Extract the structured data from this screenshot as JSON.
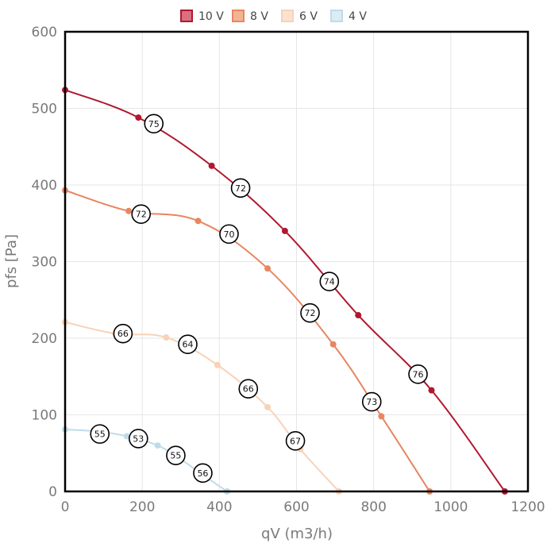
{
  "chart_data": {
    "type": "line",
    "xlabel": "qV (m3/h)",
    "ylabel": "pfs [Pa]",
    "xlim": [
      0,
      1200
    ],
    "ylim": [
      0,
      600
    ],
    "x_ticks": [
      0,
      200,
      400,
      600,
      800,
      1000,
      1200
    ],
    "y_ticks": [
      0,
      100,
      200,
      300,
      400,
      500,
      600
    ],
    "grid": true,
    "legend_position": "top",
    "series": [
      {
        "name": "10 V",
        "color": "#b0182f",
        "fill": "#d97080",
        "points": [
          [
            0,
            524
          ],
          [
            190,
            488
          ],
          [
            380,
            425
          ],
          [
            570,
            340
          ],
          [
            760,
            230
          ],
          [
            950,
            132
          ],
          [
            1140,
            0
          ]
        ],
        "annotations": [
          {
            "x": 230,
            "y": 480,
            "label": "75"
          },
          {
            "x": 455,
            "y": 396,
            "label": "72"
          },
          {
            "x": 685,
            "y": 274,
            "label": "74"
          },
          {
            "x": 915,
            "y": 153,
            "label": "76"
          }
        ]
      },
      {
        "name": "8 V",
        "color": "#e88660",
        "fill": "#f3b494",
        "points": [
          [
            0,
            393
          ],
          [
            165,
            366
          ],
          [
            345,
            353
          ],
          [
            525,
            291
          ],
          [
            695,
            192
          ],
          [
            820,
            98
          ],
          [
            945,
            0
          ]
        ],
        "annotations": [
          {
            "x": 197,
            "y": 362,
            "label": "72"
          },
          {
            "x": 425,
            "y": 336,
            "label": "70"
          },
          {
            "x": 635,
            "y": 233,
            "label": "72"
          },
          {
            "x": 795,
            "y": 117,
            "label": "73"
          }
        ]
      },
      {
        "name": "6 V",
        "color": "#f8d2b8",
        "fill": "#fbe2d2",
        "points": [
          [
            0,
            221
          ],
          [
            130,
            206
          ],
          [
            262,
            201
          ],
          [
            395,
            165
          ],
          [
            525,
            110
          ],
          [
            610,
            55
          ],
          [
            710,
            0
          ]
        ],
        "annotations": [
          {
            "x": 150,
            "y": 206,
            "label": "66"
          },
          {
            "x": 318,
            "y": 192,
            "label": "64"
          },
          {
            "x": 475,
            "y": 134,
            "label": "66"
          },
          {
            "x": 597,
            "y": 66,
            "label": "67"
          }
        ]
      },
      {
        "name": "4 V",
        "color": "#bfdbe9",
        "fill": "#dcecf4",
        "points": [
          [
            0,
            81
          ],
          [
            90,
            78
          ],
          [
            160,
            72
          ],
          [
            240,
            60
          ],
          [
            300,
            42
          ],
          [
            350,
            24
          ],
          [
            420,
            0
          ]
        ],
        "annotations": [
          {
            "x": 90,
            "y": 75,
            "label": "55"
          },
          {
            "x": 190,
            "y": 69,
            "label": "53"
          },
          {
            "x": 287,
            "y": 47,
            "label": "55"
          },
          {
            "x": 357,
            "y": 24,
            "label": "56"
          }
        ]
      }
    ]
  }
}
